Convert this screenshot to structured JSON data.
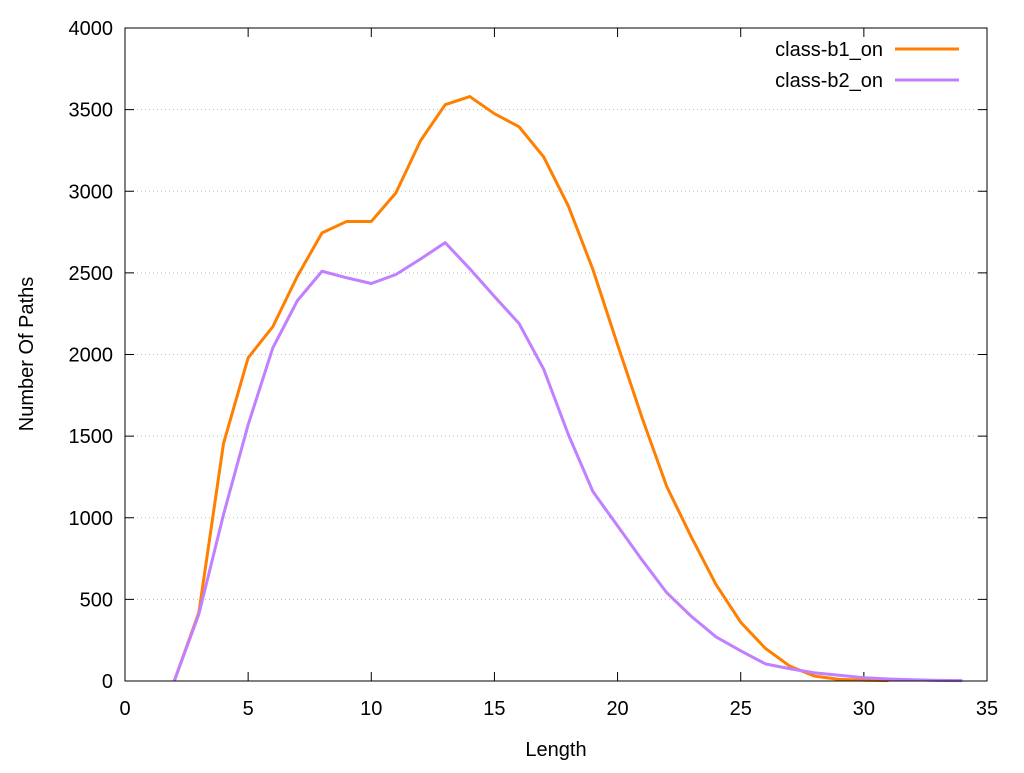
{
  "chart_data": {
    "type": "line",
    "title": "",
    "xlabel": "Length",
    "ylabel": "Number Of Paths",
    "xlim": [
      0,
      35
    ],
    "ylim": [
      0,
      4000
    ],
    "xticks": [
      0,
      5,
      10,
      15,
      20,
      25,
      30,
      35
    ],
    "yticks": [
      0,
      500,
      1000,
      1500,
      2000,
      2500,
      3000,
      3500,
      4000
    ],
    "grid": "horizontal dotted",
    "legend_position": "top-right",
    "series": [
      {
        "name": "class-b1_on",
        "color": "#ff7f00",
        "x": [
          2,
          3,
          4,
          5,
          6,
          7,
          8,
          9,
          10,
          11,
          12,
          13,
          14,
          15,
          16,
          17,
          18,
          19,
          20,
          21,
          22,
          23,
          24,
          25,
          26,
          27,
          28,
          29,
          30,
          31
        ],
        "y": [
          0,
          420,
          1455,
          1980,
          2170,
          2480,
          2745,
          2815,
          2815,
          2990,
          3310,
          3530,
          3580,
          3475,
          3395,
          3210,
          2910,
          2520,
          2060,
          1610,
          1190,
          880,
          590,
          360,
          200,
          90,
          30,
          10,
          5,
          2
        ]
      },
      {
        "name": "class-b2_on",
        "color": "#c080ff",
        "x": [
          2,
          3,
          4,
          5,
          6,
          7,
          8,
          9,
          10,
          11,
          12,
          13,
          14,
          15,
          16,
          17,
          18,
          19,
          20,
          21,
          22,
          23,
          24,
          25,
          26,
          27,
          28,
          29,
          30,
          31,
          32,
          33,
          34
        ],
        "y": [
          0,
          410,
          1020,
          1570,
          2040,
          2330,
          2510,
          2470,
          2435,
          2490,
          2585,
          2685,
          2525,
          2355,
          2190,
          1910,
          1510,
          1160,
          950,
          740,
          540,
          395,
          270,
          185,
          105,
          75,
          50,
          35,
          20,
          12,
          8,
          4,
          2
        ]
      }
    ]
  }
}
